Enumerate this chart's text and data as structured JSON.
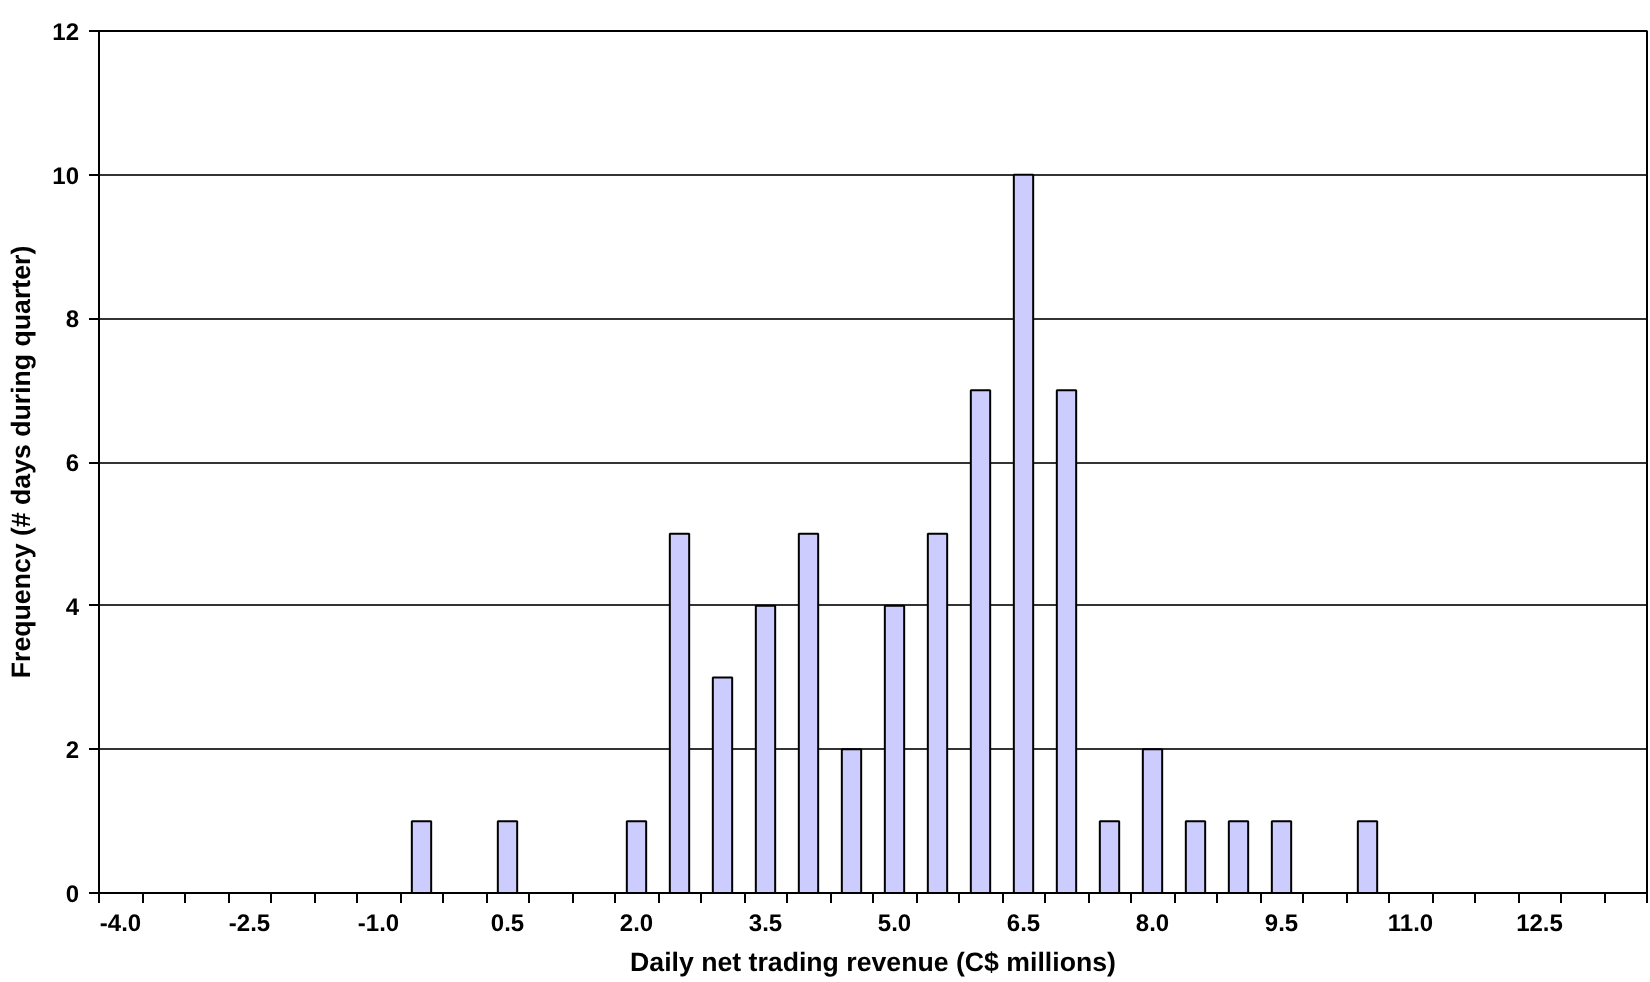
{
  "chart_data": {
    "type": "bar",
    "xlabel": "Daily net trading revenue (C$ millions)",
    "ylabel": "Frequency (# days during quarter)",
    "categories": [
      "-4.0",
      null,
      null,
      "-2.5",
      null,
      null,
      "-1.0",
      null,
      null,
      "0.5",
      null,
      null,
      "2.0",
      null,
      null,
      "3.5",
      null,
      null,
      "5.0",
      null,
      null,
      "6.5",
      null,
      null,
      "8.0",
      null,
      null,
      "9.5",
      null,
      null,
      "11.0",
      null,
      null,
      "12.5",
      null,
      null
    ],
    "values": [
      null,
      null,
      null,
      null,
      null,
      null,
      null,
      1,
      null,
      1,
      null,
      null,
      1,
      5,
      3,
      4,
      5,
      2,
      4,
      5,
      7,
      10,
      7,
      1,
      2,
      1,
      1,
      1,
      null,
      1,
      null,
      null,
      null,
      null,
      null,
      null
    ],
    "color": "#ccccff",
    "ylim": [
      0,
      12
    ],
    "yticks": [
      0,
      2,
      4,
      6,
      8,
      10,
      12
    ],
    "grid": "y"
  }
}
